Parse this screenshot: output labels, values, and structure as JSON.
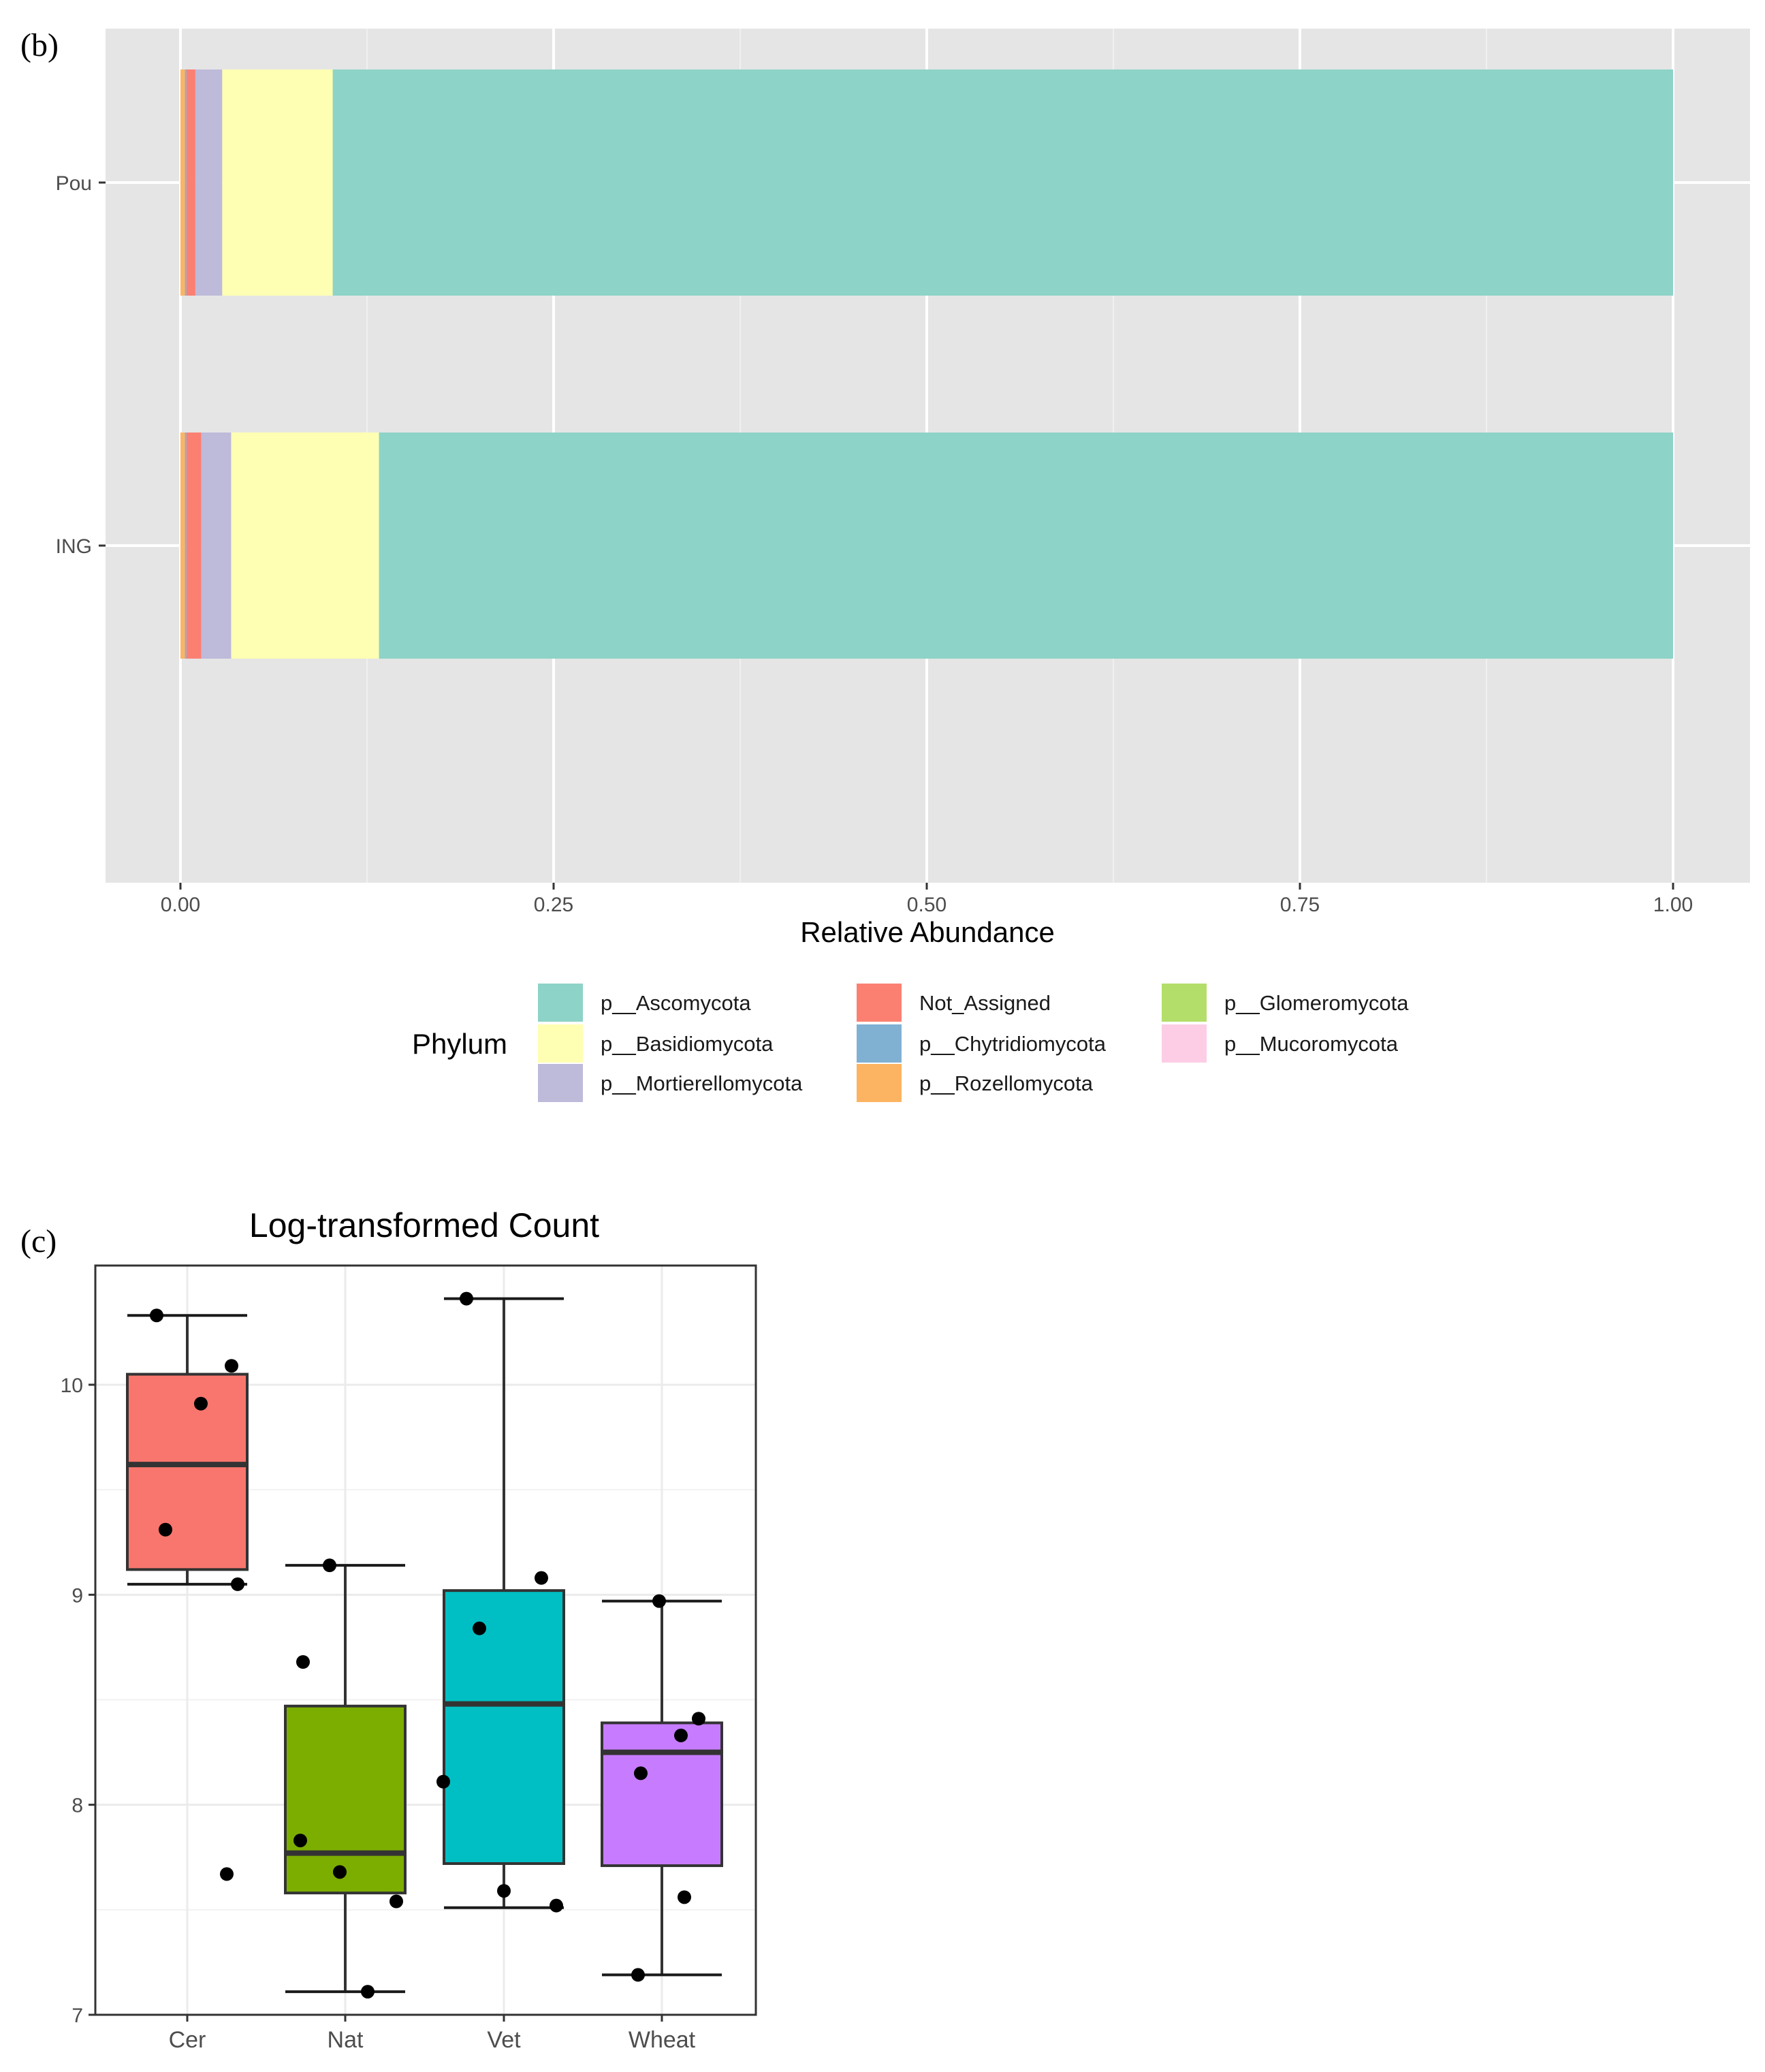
{
  "chart_data": [
    {
      "panel": "(b)",
      "type": "bar",
      "orientation": "horizontal",
      "stacked": true,
      "categories": [
        "Pou",
        "ING"
      ],
      "xlabel": "Relative Abundance",
      "ylabel": "",
      "xlim": [
        0,
        1.0
      ],
      "xticks": [
        "0.00",
        "0.25",
        "0.50",
        "0.75",
        "1.00"
      ],
      "grid": true,
      "legend": {
        "title": "Phylum",
        "placement": "bottom",
        "entries": [
          {
            "name": "p__Ascomycota",
            "color": "#8DD3C7"
          },
          {
            "name": "p__Basidiomycota",
            "color": "#FFFFB3"
          },
          {
            "name": "p__Mortierellomycota",
            "color": "#BEBADA"
          },
          {
            "name": "Not_Assigned",
            "color": "#FB8072"
          },
          {
            "name": "p__Chytridiomycota",
            "color": "#80B1D3"
          },
          {
            "name": "p__Rozellomycota",
            "color": "#FDB462"
          },
          {
            "name": "p__Glomeromycota",
            "color": "#B3DE69"
          },
          {
            "name": "p__Mucoromycota",
            "color": "#FCCDE5"
          }
        ]
      },
      "series": [
        {
          "name": "p__Rozellomycota",
          "color": "#FDB462",
          "values": [
            0.003,
            0.003
          ]
        },
        {
          "name": "p__Chytridiomycota",
          "color": "#80B1D3",
          "values": [
            0.001,
            0.001
          ]
        },
        {
          "name": "Not_Assigned",
          "color": "#FB8072",
          "values": [
            0.006,
            0.01
          ]
        },
        {
          "name": "p__Mortierellomycota",
          "color": "#BEBADA",
          "values": [
            0.018,
            0.02
          ]
        },
        {
          "name": "p__Basidiomycota",
          "color": "#FFFFB3",
          "values": [
            0.074,
            0.099
          ]
        },
        {
          "name": "p__Ascomycota",
          "color": "#8DD3C7",
          "values": [
            0.898,
            0.867
          ]
        }
      ]
    },
    {
      "panel": "(c)",
      "type": "box",
      "title": "Log-transformed Count",
      "xlabel": "",
      "ylabel": "",
      "ylim": [
        7,
        10.5
      ],
      "yticks": [
        "7",
        "8",
        "9",
        "10"
      ],
      "categories": [
        "Cer",
        "Nat",
        "Vet",
        "Wheat"
      ],
      "boxes": [
        {
          "name": "Cer",
          "color": "#F8766D",
          "whisker_low": 9.05,
          "q1": 9.12,
          "median": 9.62,
          "q3": 10.05,
          "whisker_high": 10.33,
          "points": [
            10.33,
            10.09,
            9.91,
            9.31,
            9.05,
            7.67
          ]
        },
        {
          "name": "Nat",
          "color": "#7CAE00",
          "whisker_low": 7.11,
          "q1": 7.58,
          "median": 7.77,
          "q3": 8.47,
          "whisker_high": 9.14,
          "points": [
            9.14,
            8.68,
            7.83,
            7.68,
            7.54,
            7.11
          ]
        },
        {
          "name": "Vet",
          "color": "#00BFC4",
          "whisker_low": 7.51,
          "q1": 7.72,
          "median": 8.48,
          "q3": 9.02,
          "whisker_high": 10.41,
          "points": [
            10.41,
            9.08,
            8.84,
            8.11,
            7.59,
            7.52
          ]
        },
        {
          "name": "Wheat",
          "color": "#C77CFF",
          "whisker_low": 7.19,
          "q1": 7.71,
          "median": 8.25,
          "q3": 8.39,
          "whisker_high": 8.97,
          "points": [
            8.97,
            8.41,
            8.33,
            8.15,
            7.56,
            7.19
          ]
        }
      ]
    }
  ]
}
